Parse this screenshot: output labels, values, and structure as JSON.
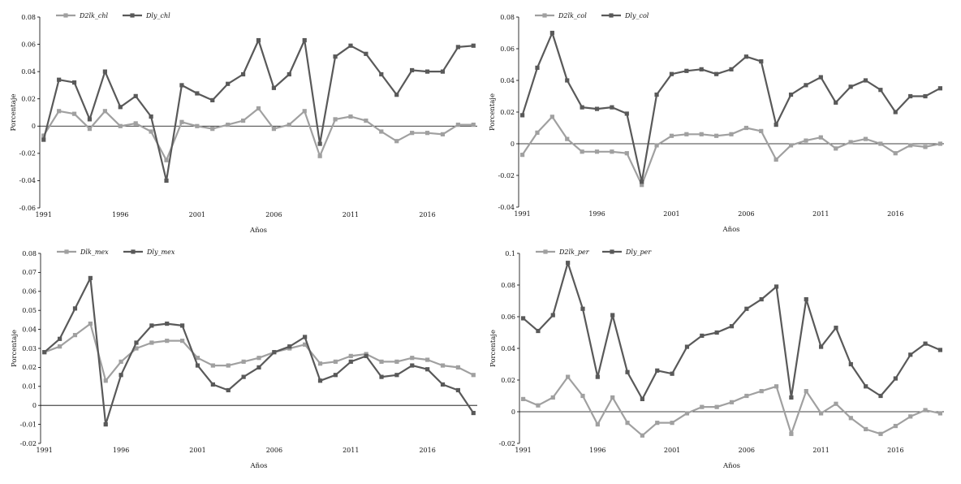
{
  "chart_data": [
    {
      "type": "line",
      "x": [
        1991,
        1992,
        1993,
        1994,
        1995,
        1996,
        1997,
        1998,
        1999,
        2000,
        2001,
        2002,
        2003,
        2004,
        2005,
        2006,
        2007,
        2008,
        2009,
        2010,
        2011,
        2012,
        2013,
        2014,
        2015,
        2016,
        2017,
        2018,
        2019
      ],
      "xticks": [
        "1991",
        "1996",
        "2001",
        "2006",
        "2011",
        "2016"
      ],
      "ylim": [
        -0.06,
        0.08
      ],
      "yticks": [
        "-0.06",
        "-0.04",
        "-0.02",
        "0",
        "0.02",
        "0.04",
        "0.06",
        "0.08"
      ],
      "xlabel": "Años",
      "ylabel": "Porcentaje",
      "legend_position": "top-left",
      "series": [
        {
          "name": "D2lk_chl",
          "color": "#a0a0a0",
          "values": [
            -0.007,
            0.011,
            0.009,
            -0.002,
            0.011,
            0.0,
            0.002,
            -0.004,
            -0.025,
            0.003,
            0.0,
            -0.002,
            0.001,
            0.004,
            0.013,
            -0.002,
            0.001,
            0.011,
            -0.022,
            0.005,
            0.007,
            0.004,
            -0.004,
            -0.011,
            -0.005,
            -0.005,
            -0.006,
            0.001,
            0.001
          ]
        },
        {
          "name": "Dly_chl",
          "color": "#595959",
          "values": [
            -0.01,
            0.034,
            0.032,
            0.005,
            0.04,
            0.014,
            0.022,
            0.007,
            -0.04,
            0.03,
            0.024,
            0.019,
            0.031,
            0.038,
            0.063,
            0.028,
            0.038,
            0.063,
            -0.013,
            0.051,
            0.059,
            0.053,
            0.038,
            0.023,
            0.041,
            0.04,
            0.04,
            0.058,
            0.059
          ]
        }
      ]
    },
    {
      "type": "line",
      "x": [
        1991,
        1992,
        1993,
        1994,
        1995,
        1996,
        1997,
        1998,
        1999,
        2000,
        2001,
        2002,
        2003,
        2004,
        2005,
        2006,
        2007,
        2008,
        2009,
        2010,
        2011,
        2012,
        2013,
        2014,
        2015,
        2016,
        2017,
        2018,
        2019
      ],
      "xticks": [
        "1991",
        "1996",
        "2001",
        "2006",
        "2011",
        "2016"
      ],
      "ylim": [
        -0.04,
        0.08
      ],
      "yticks": [
        "-0.04",
        "-0.02",
        "0",
        "0.02",
        "0.04",
        "0.06",
        "0.08"
      ],
      "xlabel": "Años",
      "ylabel": "Porcentaje",
      "legend_position": "top-left",
      "series": [
        {
          "name": "D2lk_col",
          "color": "#a0a0a0",
          "values": [
            -0.007,
            0.007,
            0.017,
            0.003,
            -0.005,
            -0.005,
            -0.005,
            -0.006,
            -0.026,
            -0.001,
            0.005,
            0.006,
            0.006,
            0.005,
            0.006,
            0.01,
            0.008,
            -0.01,
            -0.001,
            0.002,
            0.004,
            -0.003,
            0.001,
            0.003,
            0.0,
            -0.006,
            -0.001,
            -0.002,
            0.0
          ]
        },
        {
          "name": "Dly_col",
          "color": "#595959",
          "values": [
            0.018,
            0.048,
            0.07,
            0.04,
            0.023,
            0.022,
            0.023,
            0.019,
            -0.024,
            0.031,
            0.044,
            0.046,
            0.047,
            0.044,
            0.047,
            0.055,
            0.052,
            0.012,
            0.031,
            0.037,
            0.042,
            0.026,
            0.036,
            0.04,
            0.034,
            0.02,
            0.03,
            0.03,
            0.035
          ]
        }
      ]
    },
    {
      "type": "line",
      "x": [
        1991,
        1992,
        1993,
        1994,
        1995,
        1996,
        1997,
        1998,
        1999,
        2000,
        2001,
        2002,
        2003,
        2004,
        2005,
        2006,
        2007,
        2008,
        2009,
        2010,
        2011,
        2012,
        2013,
        2014,
        2015,
        2016,
        2017,
        2018,
        2019
      ],
      "xticks": [
        "1991",
        "1996",
        "2001",
        "2006",
        "2011",
        "2016"
      ],
      "ylim": [
        -0.02,
        0.08
      ],
      "yticks": [
        "-0.02",
        "-0.01",
        "0",
        "0.01",
        "0.02",
        "0.03",
        "0.04",
        "0.05",
        "0.06",
        "0.07",
        "0.08"
      ],
      "xlabel": "Años",
      "ylabel": "Porcentaje",
      "legend_position": "top-left",
      "series": [
        {
          "name": "Dlk_mex",
          "color": "#a0a0a0",
          "values": [
            0.028,
            0.031,
            0.037,
            0.043,
            0.013,
            0.023,
            0.03,
            0.033,
            0.034,
            0.034,
            0.025,
            0.021,
            0.021,
            0.023,
            0.025,
            0.028,
            0.03,
            0.032,
            0.022,
            0.023,
            0.026,
            0.027,
            0.023,
            0.023,
            0.025,
            0.024,
            0.021,
            0.02,
            0.016
          ]
        },
        {
          "name": "Dly_mex",
          "color": "#595959",
          "values": [
            0.028,
            0.035,
            0.051,
            0.067,
            -0.01,
            0.016,
            0.033,
            0.042,
            0.043,
            0.042,
            0.021,
            0.011,
            0.008,
            0.015,
            0.02,
            0.028,
            0.031,
            0.036,
            0.013,
            0.016,
            0.023,
            0.026,
            0.015,
            0.016,
            0.021,
            0.019,
            0.011,
            0.008,
            -0.004
          ]
        }
      ]
    },
    {
      "type": "line",
      "x": [
        1991,
        1992,
        1993,
        1994,
        1995,
        1996,
        1997,
        1998,
        1999,
        2000,
        2001,
        2002,
        2003,
        2004,
        2005,
        2006,
        2007,
        2008,
        2009,
        2010,
        2011,
        2012,
        2013,
        2014,
        2015,
        2016,
        2017,
        2018,
        2019
      ],
      "xticks": [
        "1991",
        "1996",
        "2001",
        "2006",
        "2011",
        "2016"
      ],
      "ylim": [
        -0.02,
        0.1
      ],
      "yticks": [
        "-0.02",
        "0",
        "0.02",
        "0.04",
        "0.06",
        "0.08",
        "0.1"
      ],
      "xlabel": "Años",
      "ylabel": "Porcentaje",
      "legend_position": "top-left",
      "series": [
        {
          "name": "D2lk_per",
          "color": "#a0a0a0",
          "values": [
            0.008,
            0.004,
            0.009,
            0.022,
            0.01,
            -0.008,
            0.009,
            -0.007,
            -0.015,
            -0.007,
            -0.007,
            -0.001,
            0.003,
            0.003,
            0.006,
            0.01,
            0.013,
            0.016,
            -0.014,
            0.013,
            -0.001,
            0.005,
            -0.004,
            -0.011,
            -0.014,
            -0.009,
            -0.003,
            0.001,
            -0.001
          ]
        },
        {
          "name": "Dly_per",
          "color": "#595959",
          "values": [
            0.059,
            0.051,
            0.061,
            0.094,
            0.065,
            0.022,
            0.061,
            0.025,
            0.008,
            0.026,
            0.024,
            0.041,
            0.048,
            0.05,
            0.054,
            0.065,
            0.071,
            0.079,
            0.009,
            0.071,
            0.041,
            0.053,
            0.03,
            0.016,
            0.01,
            0.021,
            0.036,
            0.043,
            0.039
          ]
        }
      ]
    }
  ]
}
